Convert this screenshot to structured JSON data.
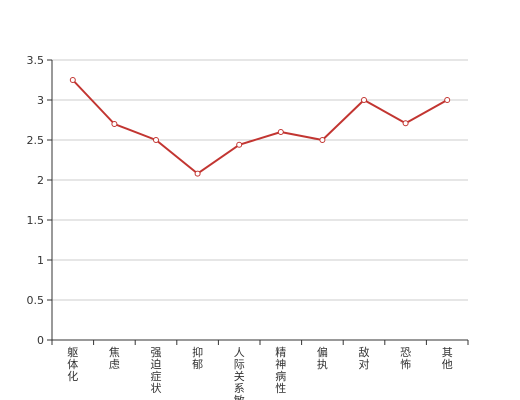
{
  "chart_data": {
    "type": "line",
    "categories": [
      "躯体化",
      "焦虑",
      "强迫症状",
      "抑郁",
      "人际关系敏感",
      "精神病性",
      "偏执",
      "敌对",
      "恐怖",
      "其他"
    ],
    "series": [
      {
        "values": [
          3.25,
          2.7,
          2.5,
          2.08,
          2.44,
          2.6,
          2.5,
          3.0,
          2.71,
          3.0
        ]
      }
    ],
    "yticks": [
      "0",
      "0.5",
      "1",
      "1.5",
      "2",
      "2.5",
      "3",
      "3.5"
    ],
    "ylim": [
      0,
      3.5
    ],
    "grid": true,
    "legend": "none",
    "colors": {
      "line": "#c23531",
      "grid": "#cccccc",
      "axis": "#333333"
    }
  }
}
